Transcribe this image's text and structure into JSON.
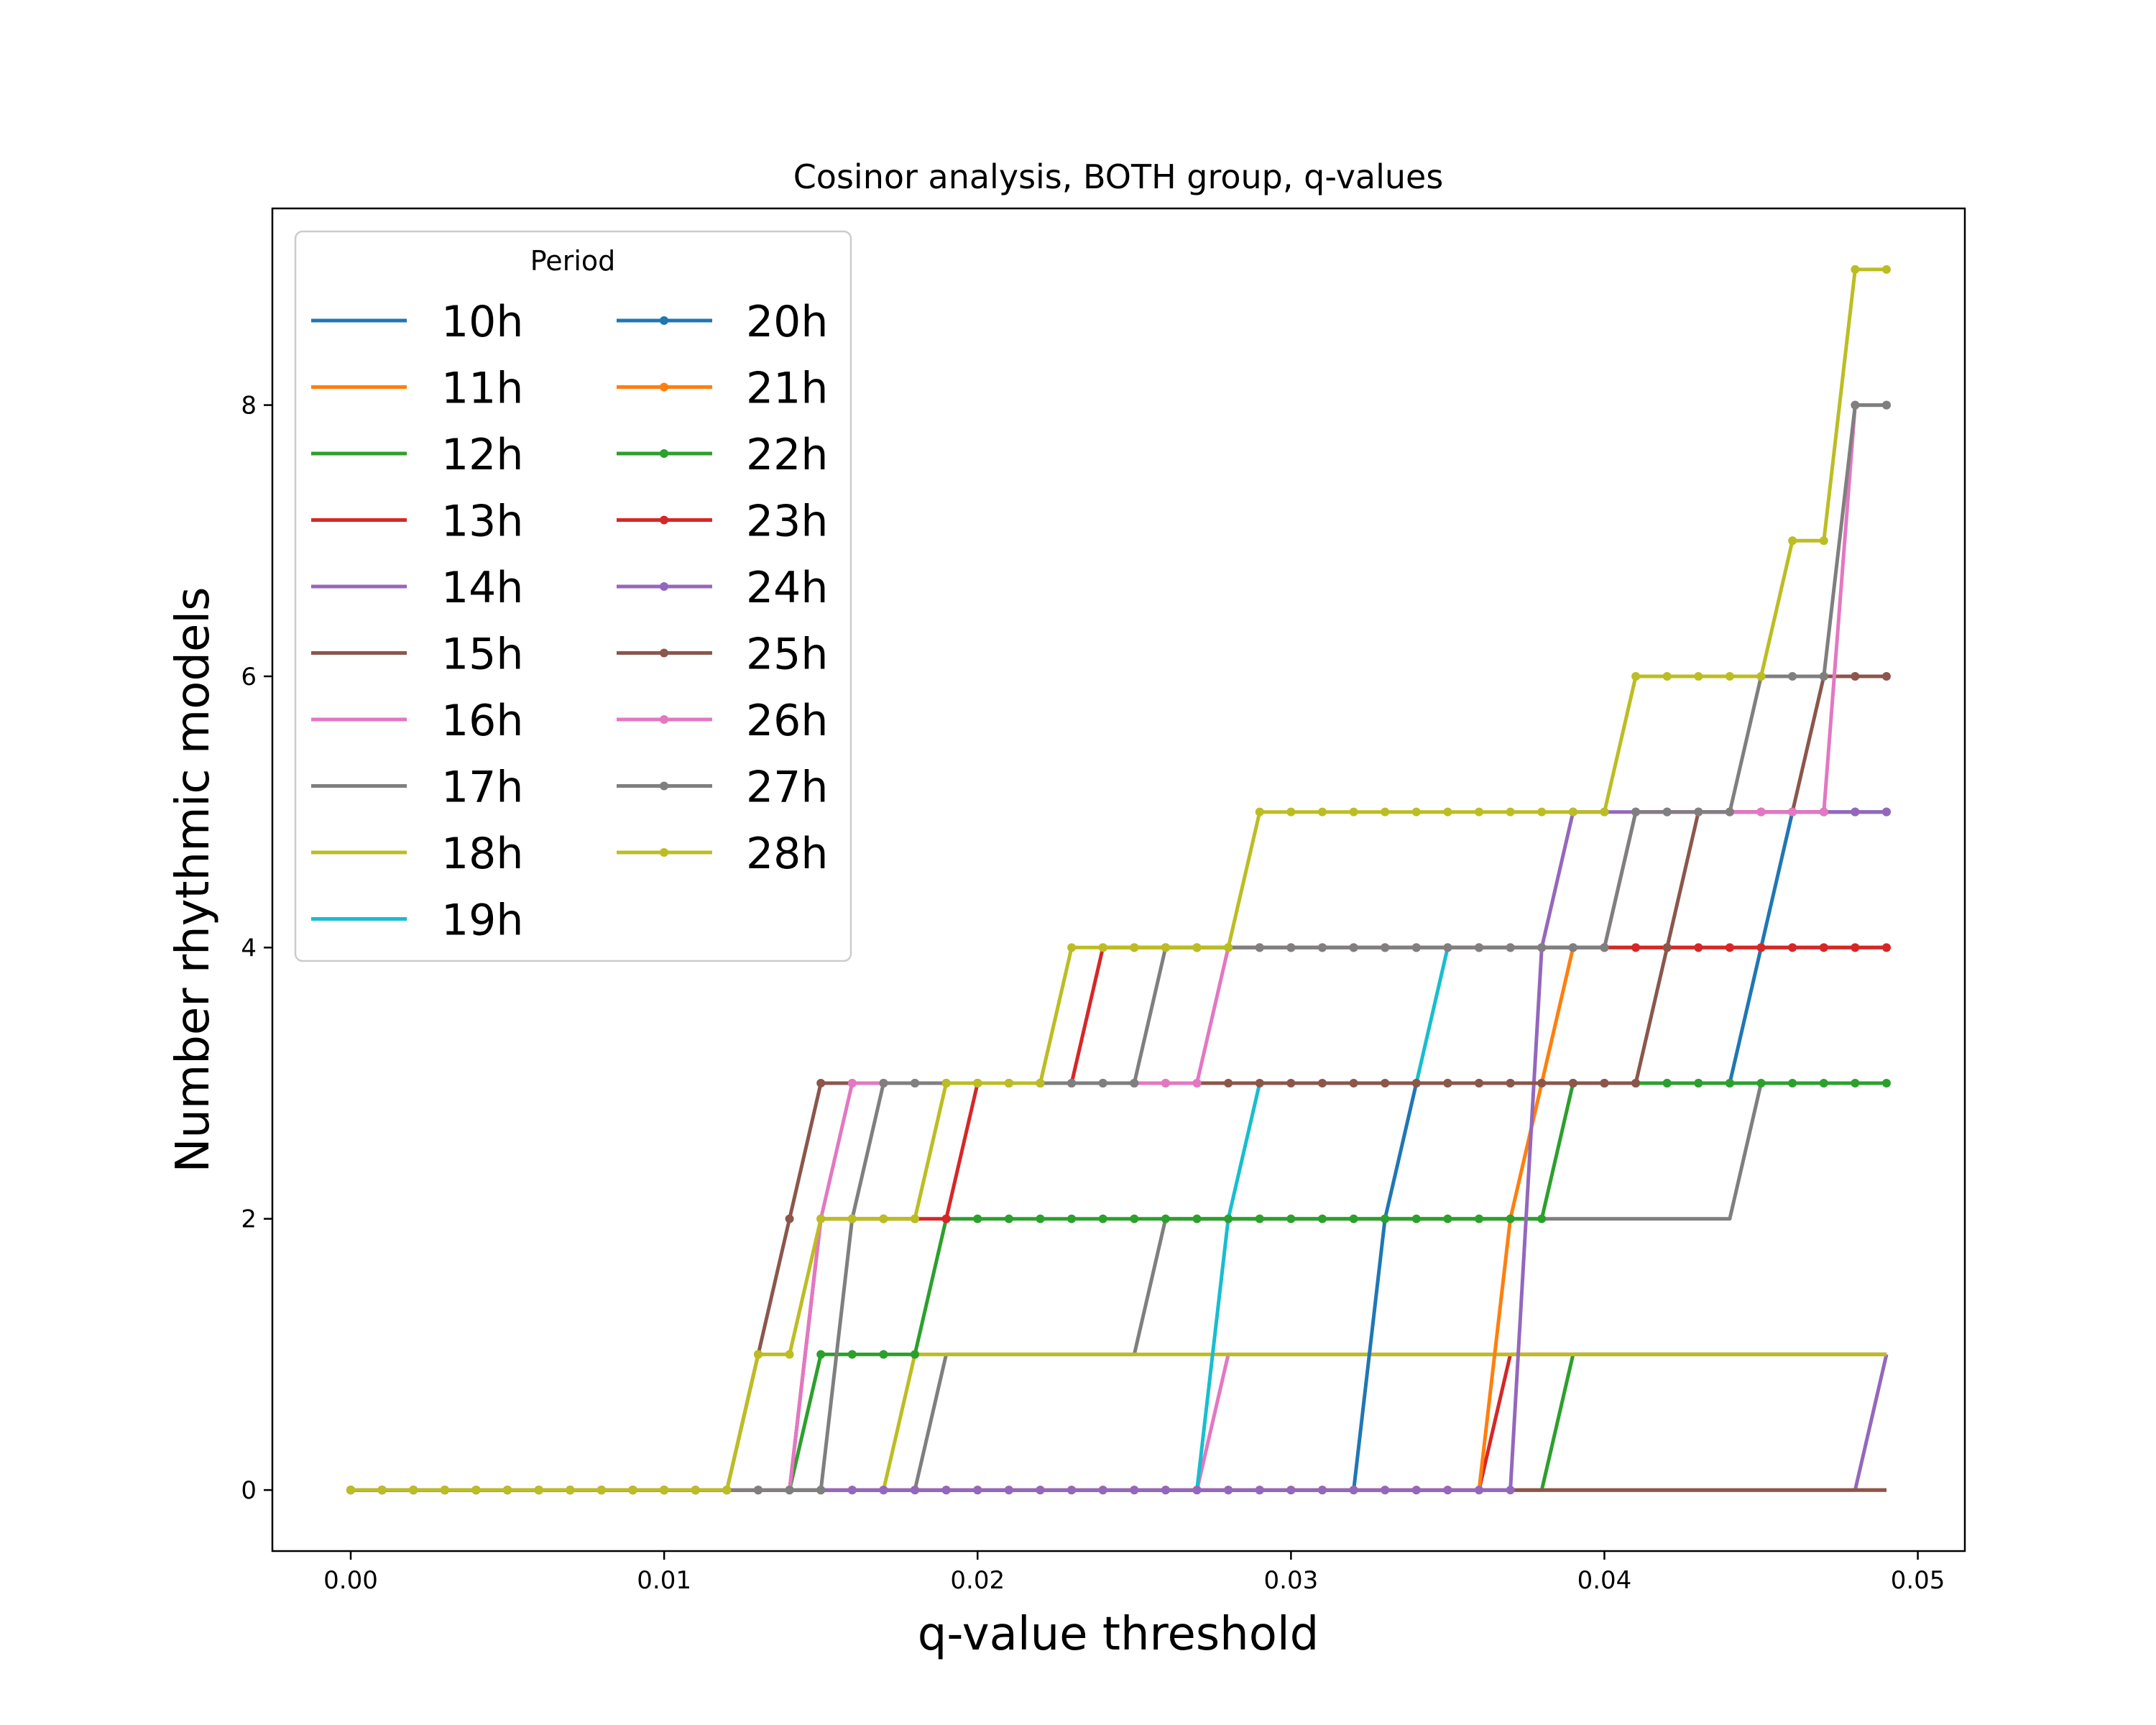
{
  "chart_data": {
    "type": "line",
    "title": "Cosinor analysis, BOTH group, q-values",
    "xlabel": "q-value threshold",
    "ylabel": "Number rhythmic models",
    "xlim": [
      -0.0025,
      0.0515
    ],
    "ylim": [
      -0.45,
      9.45
    ],
    "xticks": [
      0.0,
      0.01,
      0.02,
      0.03,
      0.04,
      0.05
    ],
    "xtick_labels": [
      "0.00",
      "0.01",
      "0.02",
      "0.03",
      "0.04",
      "0.05"
    ],
    "yticks": [
      0,
      2,
      4,
      6,
      8
    ],
    "ytick_labels": [
      "0",
      "2",
      "4",
      "6",
      "8"
    ],
    "grid": false,
    "legend": {
      "title": "Period",
      "placement": "top-left",
      "columns": 2
    },
    "x": [
      0.0,
      0.001,
      0.002,
      0.003,
      0.004,
      0.005,
      0.006,
      0.007,
      0.008,
      0.009,
      0.01,
      0.011,
      0.012,
      0.013,
      0.014,
      0.015,
      0.016,
      0.017,
      0.018,
      0.019,
      0.02,
      0.021,
      0.022,
      0.023,
      0.024,
      0.025,
      0.026,
      0.027,
      0.028,
      0.029,
      0.03,
      0.031,
      0.032,
      0.033,
      0.034,
      0.035,
      0.036,
      0.037,
      0.038,
      0.039,
      0.04,
      0.041,
      0.042,
      0.043,
      0.044,
      0.045,
      0.046,
      0.047,
      0.048,
      0.049
    ],
    "series": [
      {
        "name": "10h",
        "color": "#1f77b4",
        "markers": false,
        "values": [
          0,
          0,
          0,
          0,
          0,
          0,
          0,
          0,
          0,
          0,
          0,
          0,
          0,
          0,
          0,
          0,
          0,
          0,
          0,
          0,
          0,
          0,
          0,
          0,
          0,
          0,
          0,
          0,
          0,
          0,
          0,
          0,
          0,
          0,
          0,
          0,
          0,
          0,
          0,
          0,
          0,
          0,
          0,
          0,
          0,
          0,
          0,
          0,
          0,
          0
        ]
      },
      {
        "name": "11h",
        "color": "#ff7f0e",
        "markers": false,
        "values": [
          0,
          0,
          0,
          0,
          0,
          0,
          0,
          0,
          0,
          0,
          0,
          0,
          0,
          0,
          0,
          0,
          0,
          0,
          0,
          0,
          0,
          0,
          0,
          0,
          0,
          0,
          0,
          0,
          0,
          0,
          0,
          0,
          0,
          0,
          0,
          0,
          0,
          0,
          0,
          0,
          0,
          0,
          0,
          0,
          0,
          0,
          0,
          0,
          0,
          0
        ]
      },
      {
        "name": "12h",
        "color": "#2ca02c",
        "markers": false,
        "values": [
          0,
          0,
          0,
          0,
          0,
          0,
          0,
          0,
          0,
          0,
          0,
          0,
          0,
          0,
          0,
          0,
          0,
          0,
          0,
          0,
          0,
          0,
          0,
          0,
          0,
          0,
          0,
          0,
          0,
          0,
          0,
          0,
          0,
          0,
          0,
          0,
          0,
          0,
          0,
          1,
          1,
          1,
          1,
          1,
          1,
          1,
          1,
          1,
          1,
          1
        ]
      },
      {
        "name": "13h",
        "color": "#d62728",
        "markers": false,
        "values": [
          0,
          0,
          0,
          0,
          0,
          0,
          0,
          0,
          0,
          0,
          0,
          0,
          0,
          0,
          0,
          0,
          0,
          0,
          0,
          0,
          0,
          0,
          0,
          0,
          0,
          0,
          0,
          0,
          0,
          0,
          0,
          0,
          0,
          0,
          0,
          0,
          0,
          1,
          1,
          1,
          1,
          1,
          1,
          1,
          1,
          1,
          1,
          1,
          1,
          1
        ]
      },
      {
        "name": "14h",
        "color": "#9467bd",
        "markers": false,
        "values": [
          0,
          0,
          0,
          0,
          0,
          0,
          0,
          0,
          0,
          0,
          0,
          0,
          0,
          0,
          0,
          0,
          0,
          0,
          0,
          0,
          0,
          0,
          0,
          0,
          0,
          0,
          0,
          0,
          0,
          0,
          0,
          0,
          0,
          0,
          0,
          0,
          0,
          0,
          0,
          0,
          0,
          0,
          0,
          0,
          0,
          0,
          0,
          0,
          0,
          1
        ]
      },
      {
        "name": "15h",
        "color": "#8c564b",
        "markers": false,
        "values": [
          0,
          0,
          0,
          0,
          0,
          0,
          0,
          0,
          0,
          0,
          0,
          0,
          0,
          0,
          0,
          0,
          0,
          0,
          0,
          0,
          0,
          0,
          0,
          0,
          0,
          0,
          0,
          0,
          0,
          0,
          0,
          0,
          0,
          0,
          0,
          0,
          0,
          0,
          0,
          0,
          0,
          0,
          0,
          0,
          0,
          0,
          0,
          0,
          0,
          0
        ]
      },
      {
        "name": "16h",
        "color": "#e377c2",
        "markers": false,
        "values": [
          0,
          0,
          0,
          0,
          0,
          0,
          0,
          0,
          0,
          0,
          0,
          0,
          0,
          0,
          0,
          0,
          0,
          0,
          0,
          0,
          0,
          0,
          0,
          0,
          0,
          0,
          0,
          0,
          1,
          1,
          1,
          1,
          1,
          1,
          1,
          1,
          1,
          1,
          1,
          1,
          1,
          1,
          1,
          1,
          1,
          1,
          1,
          1,
          1,
          1
        ]
      },
      {
        "name": "17h",
        "color": "#7f7f7f",
        "markers": false,
        "values": [
          0,
          0,
          0,
          0,
          0,
          0,
          0,
          0,
          0,
          0,
          0,
          0,
          0,
          0,
          0,
          0,
          0,
          0,
          0,
          1,
          1,
          1,
          1,
          1,
          1,
          1,
          2,
          2,
          2,
          2,
          2,
          2,
          2,
          2,
          2,
          2,
          2,
          2,
          2,
          2,
          2,
          2,
          2,
          2,
          2,
          3,
          3,
          3,
          3,
          3
        ]
      },
      {
        "name": "18h",
        "color": "#bcbd22",
        "markers": false,
        "values": [
          0,
          0,
          0,
          0,
          0,
          0,
          0,
          0,
          0,
          0,
          0,
          0,
          0,
          0,
          0,
          0,
          0,
          0,
          1,
          1,
          1,
          1,
          1,
          1,
          1,
          1,
          1,
          1,
          1,
          1,
          1,
          1,
          1,
          1,
          1,
          1,
          1,
          1,
          1,
          1,
          1,
          1,
          1,
          1,
          1,
          1,
          1,
          1,
          1,
          1
        ]
      },
      {
        "name": "19h",
        "color": "#17becf",
        "markers": false,
        "values": [
          0,
          0,
          0,
          0,
          0,
          0,
          0,
          0,
          0,
          0,
          0,
          0,
          0,
          0,
          0,
          0,
          0,
          0,
          0,
          0,
          0,
          0,
          0,
          0,
          0,
          0,
          0,
          0,
          2,
          3,
          3,
          3,
          3,
          3,
          3,
          4,
          4,
          4,
          4,
          4,
          4,
          4,
          4,
          4,
          4,
          4,
          4,
          4,
          4,
          4
        ]
      },
      {
        "name": "20h",
        "color": "#1f77b4",
        "markers": true,
        "values": [
          0,
          0,
          0,
          0,
          0,
          0,
          0,
          0,
          0,
          0,
          0,
          0,
          0,
          0,
          0,
          0,
          0,
          0,
          0,
          0,
          0,
          0,
          0,
          0,
          0,
          0,
          0,
          0,
          0,
          0,
          0,
          0,
          0,
          2,
          3,
          3,
          3,
          3,
          3,
          3,
          3,
          3,
          3,
          3,
          3,
          4,
          5,
          5,
          5,
          5
        ]
      },
      {
        "name": "21h",
        "color": "#ff7f0e",
        "markers": true,
        "values": [
          0,
          0,
          0,
          0,
          0,
          0,
          0,
          0,
          0,
          0,
          0,
          0,
          0,
          0,
          0,
          0,
          0,
          0,
          0,
          0,
          0,
          0,
          0,
          0,
          0,
          0,
          0,
          0,
          0,
          0,
          0,
          0,
          0,
          0,
          0,
          0,
          0,
          2,
          3,
          4,
          4,
          4,
          4,
          4,
          4,
          4,
          4,
          4,
          4,
          4
        ]
      },
      {
        "name": "22h",
        "color": "#2ca02c",
        "markers": true,
        "values": [
          0,
          0,
          0,
          0,
          0,
          0,
          0,
          0,
          0,
          0,
          0,
          0,
          0,
          0,
          0,
          1,
          1,
          1,
          1,
          2,
          2,
          2,
          2,
          2,
          2,
          2,
          2,
          2,
          2,
          2,
          2,
          2,
          2,
          2,
          2,
          2,
          2,
          2,
          2,
          3,
          3,
          3,
          3,
          3,
          3,
          3,
          3,
          3,
          3,
          3
        ]
      },
      {
        "name": "23h",
        "color": "#d62728",
        "markers": true,
        "values": [
          0,
          0,
          0,
          0,
          0,
          0,
          0,
          0,
          0,
          0,
          0,
          0,
          0,
          0,
          0,
          2,
          2,
          2,
          2,
          2,
          3,
          3,
          3,
          3,
          4,
          4,
          4,
          4,
          4,
          4,
          4,
          4,
          4,
          4,
          4,
          4,
          4,
          4,
          4,
          4,
          4,
          4,
          4,
          4,
          4,
          4,
          4,
          4,
          4,
          4
        ]
      },
      {
        "name": "24h",
        "color": "#9467bd",
        "markers": true,
        "values": [
          0,
          0,
          0,
          0,
          0,
          0,
          0,
          0,
          0,
          0,
          0,
          0,
          0,
          0,
          0,
          0,
          0,
          0,
          0,
          0,
          0,
          0,
          0,
          0,
          0,
          0,
          0,
          0,
          0,
          0,
          0,
          0,
          0,
          0,
          0,
          0,
          0,
          0,
          4,
          5,
          5,
          5,
          5,
          5,
          5,
          5,
          5,
          5,
          5,
          5
        ]
      },
      {
        "name": "25h",
        "color": "#8c564b",
        "markers": true,
        "values": [
          0,
          0,
          0,
          0,
          0,
          0,
          0,
          0,
          0,
          0,
          0,
          0,
          0,
          1,
          2,
          3,
          3,
          3,
          3,
          3,
          3,
          3,
          3,
          3,
          3,
          3,
          3,
          3,
          3,
          3,
          3,
          3,
          3,
          3,
          3,
          3,
          3,
          3,
          3,
          3,
          3,
          3,
          4,
          5,
          5,
          5,
          5,
          6,
          6,
          6
        ]
      },
      {
        "name": "26h",
        "color": "#e377c2",
        "markers": true,
        "values": [
          0,
          0,
          0,
          0,
          0,
          0,
          0,
          0,
          0,
          0,
          0,
          0,
          0,
          0,
          0,
          2,
          3,
          3,
          3,
          3,
          3,
          3,
          3,
          3,
          3,
          3,
          3,
          3,
          4,
          4,
          4,
          4,
          4,
          4,
          4,
          4,
          4,
          4,
          4,
          4,
          4,
          5,
          5,
          5,
          5,
          5,
          5,
          5,
          8,
          8
        ]
      },
      {
        "name": "27h",
        "color": "#7f7f7f",
        "markers": true,
        "values": [
          0,
          0,
          0,
          0,
          0,
          0,
          0,
          0,
          0,
          0,
          0,
          0,
          0,
          0,
          0,
          0,
          2,
          3,
          3,
          3,
          3,
          3,
          3,
          3,
          3,
          3,
          4,
          4,
          4,
          4,
          4,
          4,
          4,
          4,
          4,
          4,
          4,
          4,
          4,
          4,
          4,
          5,
          5,
          5,
          5,
          6,
          6,
          6,
          8,
          8
        ]
      },
      {
        "name": "28h",
        "color": "#bcbd22",
        "markers": true,
        "values": [
          0,
          0,
          0,
          0,
          0,
          0,
          0,
          0,
          0,
          0,
          0,
          0,
          0,
          1,
          1,
          2,
          2,
          2,
          2,
          3,
          3,
          3,
          3,
          4,
          4,
          4,
          4,
          4,
          4,
          5,
          5,
          5,
          5,
          5,
          5,
          5,
          5,
          5,
          5,
          5,
          5,
          6,
          6,
          6,
          6,
          6,
          7,
          7,
          9,
          9
        ]
      }
    ]
  }
}
